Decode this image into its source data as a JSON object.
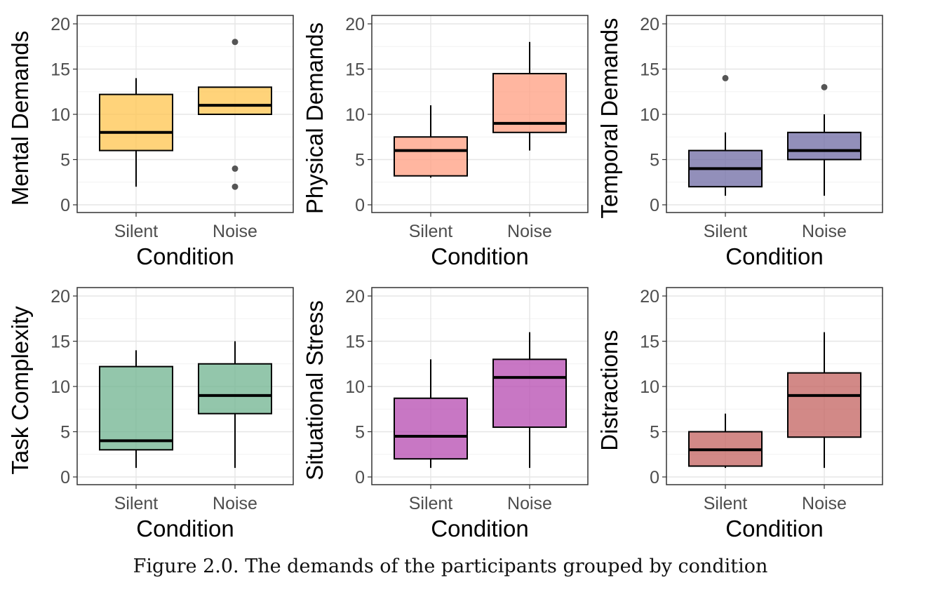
{
  "caption": "Figure 2.0. The demands of the participants grouped by condition",
  "chart_data": [
    {
      "type": "box",
      "ylabel": "Mental Demands",
      "xlabel": "Condition",
      "ylim": [
        0,
        20
      ],
      "yticks": [
        0,
        5,
        10,
        15,
        20
      ],
      "grid": true,
      "categories": [
        "Silent",
        "Noise"
      ],
      "color": "#FFC44D",
      "boxes": [
        {
          "category": "Silent",
          "whisker_low": 2,
          "q1": 6,
          "median": 8,
          "q3": 12.2,
          "whisker_high": 14,
          "outliers": []
        },
        {
          "category": "Noise",
          "whisker_low": 10,
          "q1": 10,
          "median": 11,
          "q3": 13,
          "whisker_high": 13,
          "outliers": [
            18,
            4,
            2
          ]
        }
      ]
    },
    {
      "type": "box",
      "ylabel": "Physical Demands",
      "xlabel": "Condition",
      "ylim": [
        0,
        20
      ],
      "yticks": [
        0,
        5,
        10,
        15,
        20
      ],
      "grid": true,
      "categories": [
        "Silent",
        "Noise"
      ],
      "color": "#FF9E80",
      "boxes": [
        {
          "category": "Silent",
          "whisker_low": 3,
          "q1": 3.2,
          "median": 6,
          "q3": 7.5,
          "whisker_high": 11,
          "outliers": []
        },
        {
          "category": "Noise",
          "whisker_low": 6,
          "q1": 8,
          "median": 9,
          "q3": 14.5,
          "whisker_high": 18,
          "outliers": []
        }
      ]
    },
    {
      "type": "box",
      "ylabel": "Temporal Demands",
      "xlabel": "Condition",
      "ylim": [
        0,
        20
      ],
      "yticks": [
        0,
        5,
        10,
        15,
        20
      ],
      "grid": true,
      "categories": [
        "Silent",
        "Noise"
      ],
      "color": "#6E6AA3",
      "boxes": [
        {
          "category": "Silent",
          "whisker_low": 1,
          "q1": 2,
          "median": 4,
          "q3": 6,
          "whisker_high": 8,
          "outliers": [
            14
          ]
        },
        {
          "category": "Noise",
          "whisker_low": 1,
          "q1": 5,
          "median": 6,
          "q3": 8,
          "whisker_high": 10,
          "outliers": [
            13
          ]
        }
      ]
    },
    {
      "type": "box",
      "ylabel": "Task Complexity",
      "xlabel": "Condition",
      "ylim": [
        0,
        20
      ],
      "yticks": [
        0,
        5,
        10,
        15,
        20
      ],
      "grid": true,
      "categories": [
        "Silent",
        "Noise"
      ],
      "color": "#6FB38F",
      "boxes": [
        {
          "category": "Silent",
          "whisker_low": 1,
          "q1": 3,
          "median": 4,
          "q3": 12.2,
          "whisker_high": 14,
          "outliers": []
        },
        {
          "category": "Noise",
          "whisker_low": 1,
          "q1": 7,
          "median": 9,
          "q3": 12.5,
          "whisker_high": 15,
          "outliers": []
        }
      ]
    },
    {
      "type": "box",
      "ylabel": "Situational Stress",
      "xlabel": "Condition",
      "ylim": [
        0,
        20
      ],
      "yticks": [
        0,
        5,
        10,
        15,
        20
      ],
      "grid": true,
      "categories": [
        "Silent",
        "Noise"
      ],
      "color": "#B549B0",
      "boxes": [
        {
          "category": "Silent",
          "whisker_low": 1,
          "q1": 2,
          "median": 4.5,
          "q3": 8.7,
          "whisker_high": 13,
          "outliers": []
        },
        {
          "category": "Noise",
          "whisker_low": 1,
          "q1": 5.5,
          "median": 11,
          "q3": 13,
          "whisker_high": 16,
          "outliers": []
        }
      ]
    },
    {
      "type": "box",
      "ylabel": "Distractions",
      "xlabel": "Condition",
      "ylim": [
        0,
        20
      ],
      "yticks": [
        0,
        5,
        10,
        15,
        20
      ],
      "grid": true,
      "categories": [
        "Silent",
        "Noise"
      ],
      "color": "#C3625F",
      "boxes": [
        {
          "category": "Silent",
          "whisker_low": 1,
          "q1": 1.2,
          "median": 3,
          "q3": 5,
          "whisker_high": 7,
          "outliers": []
        },
        {
          "category": "Noise",
          "whisker_low": 1,
          "q1": 4.4,
          "median": 9,
          "q3": 11.5,
          "whisker_high": 16,
          "outliers": []
        }
      ]
    }
  ]
}
